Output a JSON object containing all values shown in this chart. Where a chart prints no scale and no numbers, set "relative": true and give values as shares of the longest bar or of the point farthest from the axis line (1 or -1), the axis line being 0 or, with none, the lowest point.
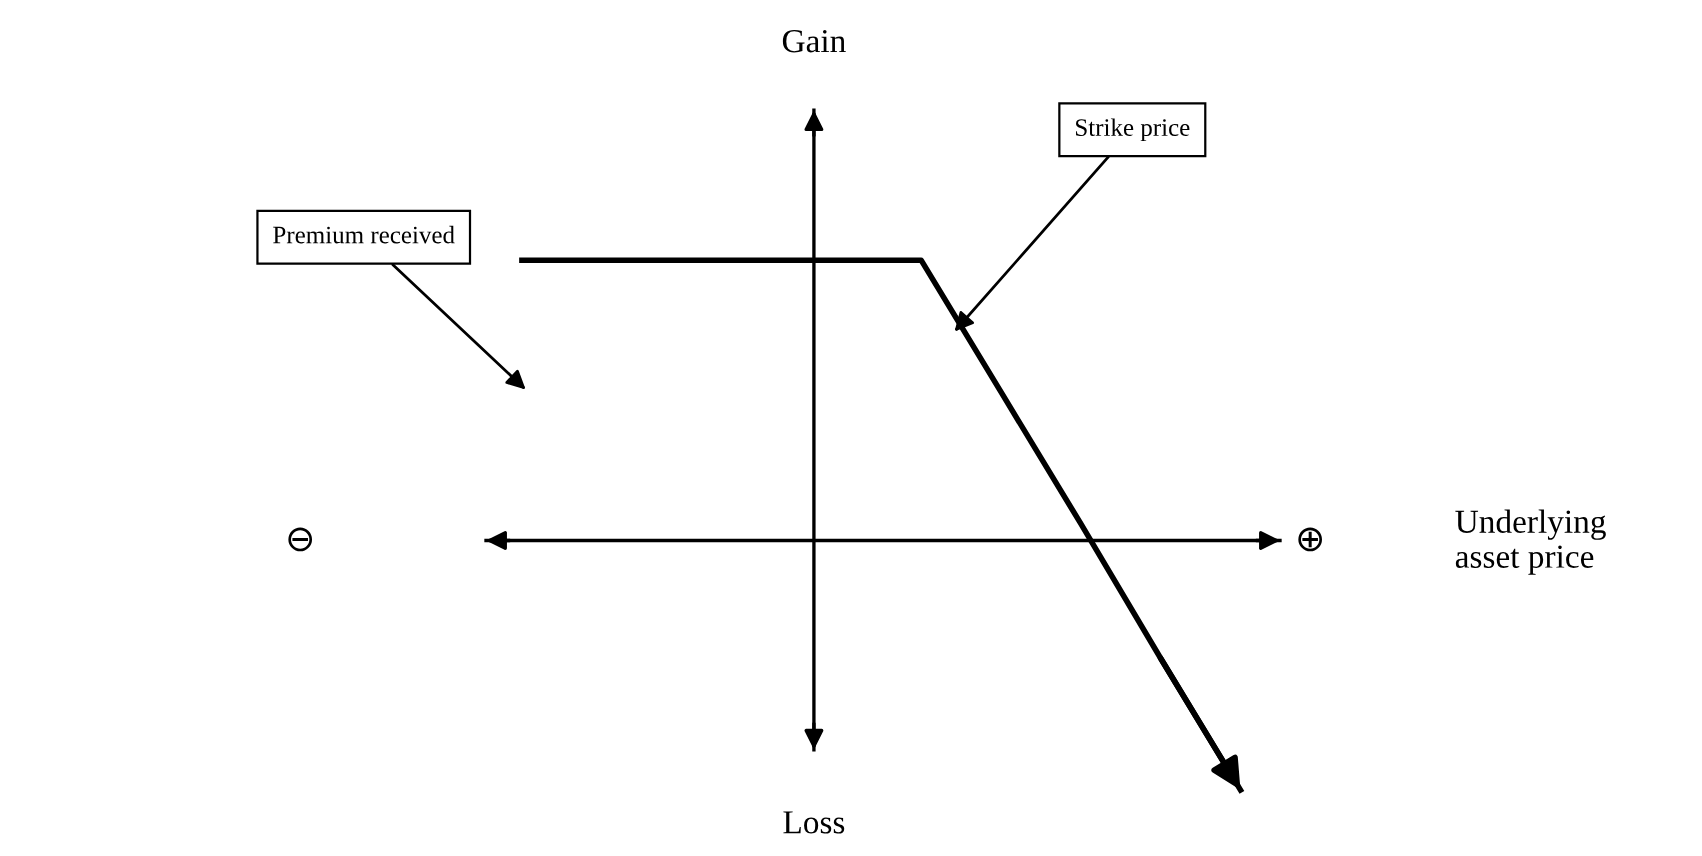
{
  "chart_data": {
    "type": "line",
    "relative": true,
    "categories": [
      null,
      null,
      null,
      null,
      null,
      null,
      null,
      null,
      null,
      null
    ],
    "series": [
      {
        "color": "#000000",
        "values": [
          1,
          1,
          1,
          1,
          1,
          1,
          0.53,
          0.06,
          -0.42,
          -0.89
        ]
      }
    ],
    "legend": false,
    "marker": "none",
    "line_style": "solid",
    "annotations": [
      "Gain",
      "Loss",
      "⊖",
      "⊕",
      "Premium received",
      "Strike price",
      "Underlying\nasset price"
    ]
  }
}
